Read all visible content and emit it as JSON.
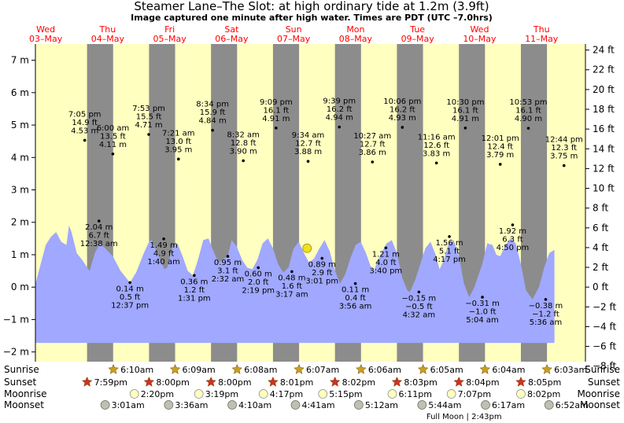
{
  "title": "Steamer Lane–The Slot: at high  ordinary tide at 1.2m (3.9ft)",
  "subtitle": "Image captured one minute after high water. Times are PDT (UTC –7.0hrs)",
  "colors": {
    "day": "#ffffc0",
    "night": "#8c8c8c",
    "tide": "#a0a8ff",
    "weekday": "#ff0000",
    "sun_star": "#c8a020",
    "sunset_star": "#d03020",
    "moonrise": "#ffffc0",
    "moonset": "#c0c0b0",
    "current_marker": "#f0e020"
  },
  "chart_data": {
    "type": "area",
    "ylim_m": [
      -2.3,
      7.5
    ],
    "ylim_ft": [
      -8,
      24
    ],
    "y_ticks_m": [
      "7 m",
      "6 m",
      "5 m",
      "4 m",
      "3 m",
      "2 m",
      "1 m",
      "0 m",
      "−1 m",
      "−2 m"
    ],
    "y_ticks_ft": [
      "24 ft",
      "22 ft",
      "20 ft",
      "18 ft",
      "16 ft",
      "14 ft",
      "12 ft",
      "10 ft",
      "8 ft",
      "6 ft",
      "4 ft",
      "2 ft",
      "0 ft",
      "−2 ft",
      "−4 ft",
      "−6 ft",
      "−8 ft"
    ],
    "days": [
      {
        "dow": "Wed",
        "date": "03–May"
      },
      {
        "dow": "Thu",
        "date": "04–May"
      },
      {
        "dow": "Fri",
        "date": "05–May"
      },
      {
        "dow": "Sat",
        "date": "06–May"
      },
      {
        "dow": "Sun",
        "date": "07–May"
      },
      {
        "dow": "Mon",
        "date": "08–May"
      },
      {
        "dow": "Tue",
        "date": "09–May"
      },
      {
        "dow": "Wed",
        "date": "10–May"
      },
      {
        "dow": "Thu",
        "date": "11–May"
      }
    ],
    "night_bands_hours": [
      [
        20.0,
        30.1
      ],
      [
        44.0,
        54.1
      ],
      [
        68.0,
        78.1
      ],
      [
        92.0,
        102.1
      ],
      [
        116.0,
        126.1
      ],
      [
        140.0,
        150.1
      ],
      [
        164.0,
        174.1
      ],
      [
        188.0,
        198.1
      ]
    ],
    "tide_curve": [
      [
        0,
        0.1
      ],
      [
        2,
        0.7
      ],
      [
        4,
        1.3
      ],
      [
        6,
        1.55
      ],
      [
        8,
        1.7
      ],
      [
        10,
        1.4
      ],
      [
        12,
        1.3
      ],
      [
        13,
        1.9
      ],
      [
        14,
        1.7
      ],
      [
        16,
        1.05
      ],
      [
        18,
        0.85
      ],
      [
        21,
        0.5
      ],
      [
        23,
        1.05
      ],
      [
        25,
        1.35
      ],
      [
        27,
        1.2
      ],
      [
        30,
        0.95
      ],
      [
        33,
        0.5
      ],
      [
        36.6,
        0.14
      ],
      [
        39,
        0.45
      ],
      [
        42,
        1.05
      ],
      [
        44,
        1.4
      ],
      [
        45,
        1.45
      ],
      [
        47,
        1.1
      ],
      [
        49,
        0.7
      ],
      [
        50,
        0.55
      ],
      [
        51,
        0.6
      ],
      [
        53,
        1.2
      ],
      [
        55,
        1.35
      ],
      [
        57,
        0.95
      ],
      [
        59,
        0.5
      ],
      [
        61,
        0.36
      ],
      [
        63,
        0.85
      ],
      [
        65,
        1.45
      ],
      [
        67,
        1.5
      ],
      [
        69,
        1.1
      ],
      [
        71,
        0.75
      ],
      [
        72.5,
        0.85
      ],
      [
        74.5,
        0.95
      ],
      [
        76,
        1.45
      ],
      [
        78,
        1.25
      ],
      [
        80,
        0.85
      ],
      [
        82,
        0.6
      ],
      [
        84,
        0.55
      ],
      [
        86,
        0.85
      ],
      [
        88,
        1.35
      ],
      [
        90,
        1.5
      ],
      [
        92,
        1.2
      ],
      [
        94,
        0.7
      ],
      [
        96,
        0.45
      ],
      [
        98,
        0.6
      ],
      [
        100,
        1.2
      ],
      [
        102,
        1.4
      ],
      [
        104,
        1.05
      ],
      [
        106,
        0.75
      ],
      [
        108,
        0.89
      ],
      [
        110,
        1.2
      ],
      [
        112,
        1.45
      ],
      [
        114,
        1.1
      ],
      [
        116,
        0.5
      ],
      [
        118,
        0.11
      ],
      [
        120,
        0.4
      ],
      [
        122,
        0.9
      ],
      [
        124,
        1.3
      ],
      [
        126,
        1.4
      ],
      [
        128,
        1.05
      ],
      [
        130,
        0.6
      ],
      [
        131,
        0.5
      ],
      [
        133,
        0.9
      ],
      [
        136,
        1.35
      ],
      [
        138,
        1.45
      ],
      [
        140,
        1.05
      ],
      [
        142,
        0.3
      ],
      [
        144,
        -0.1
      ],
      [
        145,
        -0.15
      ],
      [
        147,
        0.2
      ],
      [
        149,
        0.7
      ],
      [
        151,
        1.2
      ],
      [
        153,
        1.4
      ],
      [
        155,
        1.0
      ],
      [
        156.5,
        0.55
      ],
      [
        158,
        0.8
      ],
      [
        160,
        1.35
      ],
      [
        162,
        1.45
      ],
      [
        164,
        0.95
      ],
      [
        166,
        0.1
      ],
      [
        168,
        -0.31
      ],
      [
        170,
        0.0
      ],
      [
        173,
        0.7
      ],
      [
        175,
        1.35
      ],
      [
        177,
        1.3
      ],
      [
        178.5,
        1.0
      ],
      [
        180,
        0.95
      ],
      [
        182,
        1.3
      ],
      [
        184,
        1.5
      ],
      [
        186,
        1.35
      ],
      [
        188,
        0.7
      ],
      [
        190,
        -0.1
      ],
      [
        192.5,
        -0.38
      ],
      [
        195,
        0.0
      ],
      [
        197,
        0.6
      ],
      [
        199,
        1.05
      ],
      [
        201,
        1.15
      ]
    ],
    "extremes": [
      {
        "h": 19.1,
        "m": 4.53,
        "lines": [
          "7:05 pm",
          "14.9 ft",
          "4.53 m"
        ],
        "side": "above"
      },
      {
        "h": 24.6,
        "m": 2.04,
        "lines": [
          "2.04 m",
          "6.7 ft",
          "12:38 am"
        ],
        "side": "below"
      },
      {
        "h": 30.0,
        "m": 4.11,
        "lines": [
          "6:00 am",
          "13.5 ft",
          "4.11 m"
        ],
        "side": "above"
      },
      {
        "h": 36.6,
        "m": 0.14,
        "lines": [
          "0.14 m",
          "0.5 ft",
          "12:37 pm"
        ],
        "side": "below"
      },
      {
        "h": 43.9,
        "m": 4.71,
        "lines": [
          "7:53 pm",
          "15.5 ft",
          "4.71 m"
        ],
        "side": "above"
      },
      {
        "h": 49.7,
        "m": 1.49,
        "lines": [
          "1.49 m",
          "4.9 ft",
          "1:40 am"
        ],
        "side": "below"
      },
      {
        "h": 55.4,
        "m": 3.95,
        "lines": [
          "7:21 am",
          "13.0 ft",
          "3.95 m"
        ],
        "side": "above"
      },
      {
        "h": 61.5,
        "m": 0.36,
        "lines": [
          "0.36 m",
          "1.2 ft",
          "1:31 pm"
        ],
        "side": "below"
      },
      {
        "h": 68.6,
        "m": 4.84,
        "lines": [
          "8:34 pm",
          "15.9 ft",
          "4.84 m"
        ],
        "side": "above"
      },
      {
        "h": 74.5,
        "m": 0.95,
        "lines": [
          "0.95 m",
          "3.1 ft",
          "2:32 am"
        ],
        "side": "below"
      },
      {
        "h": 80.5,
        "m": 3.9,
        "lines": [
          "8:32 am",
          "12.8 ft",
          "3.90 m"
        ],
        "side": "above"
      },
      {
        "h": 86.3,
        "m": 0.6,
        "lines": [
          "0.60 m",
          "2.0 ft",
          "2:19 pm"
        ],
        "side": "below"
      },
      {
        "h": 93.2,
        "m": 4.91,
        "lines": [
          "9:09 pm",
          "16.1 ft",
          "4.91 m"
        ],
        "side": "above"
      },
      {
        "h": 99.3,
        "m": 0.48,
        "lines": [
          "0.48 m",
          "1.6 ft",
          "3:17 am"
        ],
        "side": "below"
      },
      {
        "h": 105.6,
        "m": 3.88,
        "lines": [
          "9:34 am",
          "12.7 ft",
          "3.88 m"
        ],
        "side": "above"
      },
      {
        "h": 111.0,
        "m": 0.89,
        "lines": [
          "0.89 m",
          "2.9 ft",
          "3:01 pm"
        ],
        "side": "below"
      },
      {
        "h": 117.7,
        "m": 4.94,
        "lines": [
          "9:39 pm",
          "16.2 ft",
          "4.94 m"
        ],
        "side": "above"
      },
      {
        "h": 123.9,
        "m": 0.11,
        "lines": [
          "0.11 m",
          "0.4 ft",
          "3:56 am"
        ],
        "side": "below"
      },
      {
        "h": 130.5,
        "m": 3.86,
        "lines": [
          "10:27 am",
          "12.7 ft",
          "3.86 m"
        ],
        "side": "above"
      },
      {
        "h": 135.7,
        "m": 1.21,
        "lines": [
          "1.21 m",
          "4.0 ft",
          "3:40 pm"
        ],
        "side": "below"
      },
      {
        "h": 142.1,
        "m": 4.93,
        "lines": [
          "10:06 pm",
          "16.2 ft",
          "4.93 m"
        ],
        "side": "above"
      },
      {
        "h": 148.5,
        "m": -0.15,
        "lines": [
          "−0.15 m",
          "−0.5 ft",
          "4:32 am"
        ],
        "side": "below"
      },
      {
        "h": 155.3,
        "m": 3.83,
        "lines": [
          "11:16 am",
          "12.6 ft",
          "3.83 m"
        ],
        "side": "above"
      },
      {
        "h": 160.3,
        "m": 1.56,
        "lines": [
          "1.56 m",
          "5.1 ft",
          "4:17 pm"
        ],
        "side": "below"
      },
      {
        "h": 166.5,
        "m": 4.91,
        "lines": [
          "10:30 pm",
          "16.1 ft",
          "4.91 m"
        ],
        "side": "above"
      },
      {
        "h": 173.1,
        "m": -0.31,
        "lines": [
          "−0.31 m",
          "−1.0 ft",
          "5:04 am"
        ],
        "side": "below"
      },
      {
        "h": 180.0,
        "m": 3.79,
        "lines": [
          "12:01 pm",
          "12.4 ft",
          "3.79 m"
        ],
        "side": "above"
      },
      {
        "h": 184.8,
        "m": 1.92,
        "lines": [
          "1.92 m",
          "6.3 ft",
          "4:50 pm"
        ],
        "side": "below"
      },
      {
        "h": 190.9,
        "m": 4.9,
        "lines": [
          "10:53 pm",
          "16.1 ft",
          "4.90 m"
        ],
        "side": "above"
      },
      {
        "h": 197.6,
        "m": -0.38,
        "lines": [
          "−0.38 m",
          "−1.2 ft",
          "5:36 am"
        ],
        "side": "below"
      },
      {
        "h": 204.7,
        "m": 3.75,
        "lines": [
          "12:44 pm",
          "12.3 ft",
          "3.75 m"
        ],
        "side": "above"
      }
    ],
    "current_marker": {
      "h": 105.2,
      "m": 1.2
    }
  },
  "astro": {
    "rows": [
      "Sunrise",
      "Sunset",
      "Moonrise",
      "Moonset"
    ],
    "sunrise": [
      {
        "h": 30.2,
        "t": "6:10am"
      },
      {
        "h": 54.1,
        "t": "6:09am"
      },
      {
        "h": 78.1,
        "t": "6:08am"
      },
      {
        "h": 102.1,
        "t": "6:07am"
      },
      {
        "h": 126.1,
        "t": "6:06am"
      },
      {
        "h": 150.1,
        "t": "6:05am"
      },
      {
        "h": 174.1,
        "t": "6:04am"
      },
      {
        "h": 198.1,
        "t": "6:03am"
      }
    ],
    "sunset": [
      {
        "h": 20.0,
        "t": "7:59pm"
      },
      {
        "h": 44.0,
        "t": "8:00pm"
      },
      {
        "h": 68.0,
        "t": "8:00pm"
      },
      {
        "h": 92.0,
        "t": "8:01pm"
      },
      {
        "h": 116.0,
        "t": "8:02pm"
      },
      {
        "h": 140.0,
        "t": "8:03pm"
      },
      {
        "h": 164.0,
        "t": "8:04pm"
      },
      {
        "h": 188.0,
        "t": "8:05pm"
      }
    ],
    "moonrise": [
      {
        "h": 38.3,
        "t": "2:20pm"
      },
      {
        "h": 63.3,
        "t": "3:19pm"
      },
      {
        "h": 88.3,
        "t": "4:17pm"
      },
      {
        "h": 111.3,
        "t": "5:15pm"
      },
      {
        "h": 138.2,
        "t": "6:11pm"
      },
      {
        "h": 161.1,
        "t": "7:07pm"
      },
      {
        "h": 188.0,
        "t": "8:02pm"
      }
    ],
    "moonset": [
      {
        "h": 27.0,
        "t": "3:01am"
      },
      {
        "h": 51.6,
        "t": "3:36am"
      },
      {
        "h": 76.2,
        "t": "4:10am"
      },
      {
        "h": 100.7,
        "t": "4:41am"
      },
      {
        "h": 125.2,
        "t": "5:12am"
      },
      {
        "h": 149.7,
        "t": "5:44am"
      },
      {
        "h": 174.3,
        "t": "6:17am"
      },
      {
        "h": 198.9,
        "t": "6:52am"
      }
    ],
    "full_moon": "Full Moon | 2:43pm"
  }
}
